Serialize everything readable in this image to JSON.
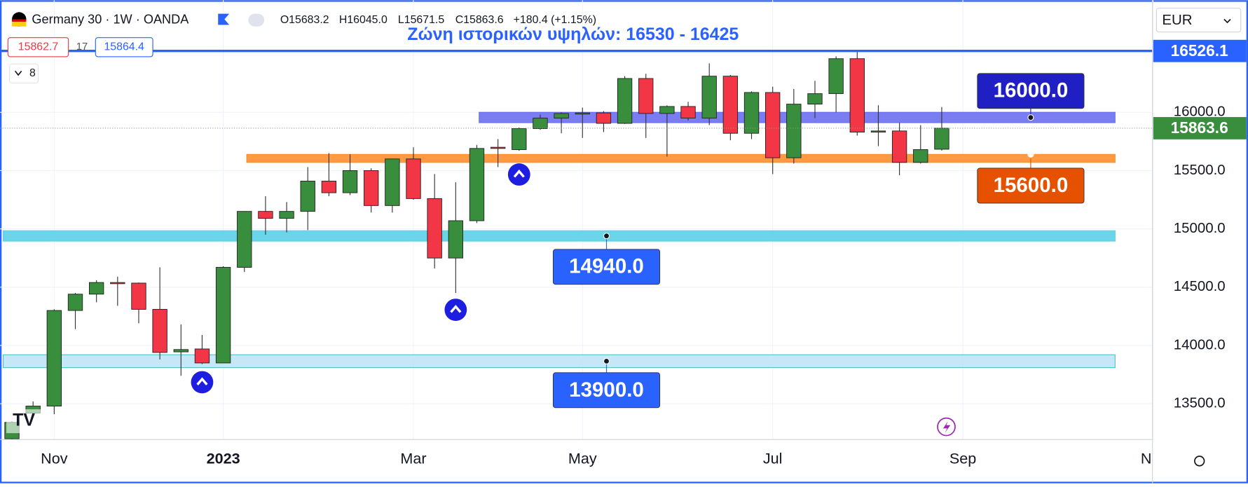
{
  "header": {
    "symbol": "Germany 30 · 1W · OANDA",
    "open": "O15683.2",
    "high": "H16045.0",
    "low": "L15671.5",
    "close": "C15863.6",
    "change": "+180.4 (+1.15%)",
    "bid": "15862.7",
    "spread": "17",
    "ask": "15864.4",
    "indicators": "8",
    "currency": "EUR"
  },
  "chart_data": {
    "type": "candlestick",
    "annotation": "Ζώνη ιστορικών υψηλών: 16530 - 16425",
    "categories": [
      null,
      null,
      "Nov",
      null,
      null,
      null,
      null,
      null,
      null,
      null,
      "2023",
      null,
      null,
      null,
      null,
      null,
      null,
      null,
      null,
      "Mar",
      null,
      null,
      null,
      null,
      null,
      null,
      null,
      "May",
      null,
      null,
      null,
      null,
      null,
      null,
      null,
      null,
      "Jul",
      null,
      null,
      null,
      null,
      null,
      null,
      null,
      null,
      "Sep",
      null,
      null,
      null,
      null,
      null,
      null,
      null,
      null,
      "N"
    ],
    "open": [
      13200,
      13420,
      13480,
      14300,
      14440,
      14540,
      14535,
      14310,
      13945,
      13970,
      13850,
      14670,
      15150,
      15090,
      15150,
      15410,
      15310,
      15500,
      15200,
      15600,
      15260,
      14750,
      15070,
      15700,
      15680,
      15860,
      15950,
      15985,
      15995,
      15905,
      16290,
      15990,
      16050,
      15950,
      16310,
      15820,
      16170,
      15610,
      16070,
      16160,
      16460,
      15830,
      15840,
      15570,
      15683.2,
      null,
      null,
      null,
      null,
      null,
      null,
      null,
      null,
      null,
      null
    ],
    "high": [
      13350,
      13520,
      14310,
      14450,
      14560,
      14590,
      14540,
      14670,
      14180,
      14090,
      14680,
      15150,
      15280,
      15230,
      15530,
      15650,
      15640,
      15520,
      15600,
      15700,
      15470,
      15400,
      15720,
      15770,
      15870,
      15980,
      16000,
      16040,
      16010,
      16310,
      16330,
      16060,
      16090,
      16420,
      16320,
      16180,
      16220,
      16200,
      16270,
      16480,
      16530,
      16060,
      15910,
      15890,
      16045,
      null,
      null,
      null,
      null,
      null,
      null,
      null,
      null,
      null,
      null
    ],
    "low": [
      13195,
      13390,
      13410,
      14140,
      14370,
      14340,
      14190,
      13880,
      13740,
      13840,
      13850,
      14630,
      14950,
      14970,
      14990,
      15280,
      15290,
      15140,
      15140,
      15250,
      14660,
      14450,
      15050,
      15530,
      15670,
      15850,
      15820,
      15780,
      15830,
      15900,
      15780,
      15620,
      15930,
      15890,
      15760,
      15770,
      15470,
      15560,
      15950,
      16000,
      15800,
      15710,
      15460,
      15560,
      15671.5,
      null,
      null,
      null,
      null,
      null,
      null,
      null,
      null,
      null,
      null
    ],
    "close": [
      13340,
      13480,
      14300,
      14440,
      14540,
      14535,
      14310,
      13940,
      13965,
      13850,
      14670,
      15150,
      15090,
      15150,
      15410,
      15310,
      15500,
      15200,
      15600,
      15260,
      14750,
      15070,
      15690,
      15690,
      15860,
      15950,
      15990,
      15995,
      15905,
      16290,
      15990,
      16050,
      15950,
      16310,
      15820,
      16170,
      15610,
      16070,
      16160,
      16460,
      15830,
      15840,
      15570,
      15680,
      15863.6,
      null,
      null,
      null,
      null,
      null,
      null,
      null,
      null,
      null,
      null
    ],
    "up_color": "#388e3c",
    "down_color": "#f23645",
    "ylim": [
      13193,
      16907
    ],
    "yticks": [
      {
        "value": 13500,
        "label": "13500.0"
      },
      {
        "value": 14000,
        "label": "14000.0"
      },
      {
        "value": 14500,
        "label": "14500.0"
      },
      {
        "value": 15000,
        "label": "15000.0"
      },
      {
        "value": 15500,
        "label": "15500.0"
      },
      {
        "value": 16000,
        "label": "16000.0"
      }
    ],
    "grid": true,
    "zones": [
      {
        "low": 15911,
        "high": 16000,
        "label": "16000.0",
        "color": "#6b6ff0",
        "label_color": "#1f1fc4"
      },
      {
        "low": 15570,
        "high": 15639,
        "label": "15600.0",
        "color": "#ff8f2e",
        "label_color": "#e65100"
      },
      {
        "low": 14895,
        "high": 14984,
        "label": "14940.0",
        "color": "#5ccfe6",
        "label_color": "#2962ff"
      },
      {
        "low": 13810,
        "high": 13920,
        "label": "13900.0",
        "color": "#bfe4f7",
        "label_color": "#2962ff"
      }
    ],
    "lines": [
      {
        "value": 16526.1,
        "color": "#2962ff"
      },
      {
        "value": 15863.6,
        "color": "#388e3c"
      }
    ]
  }
}
